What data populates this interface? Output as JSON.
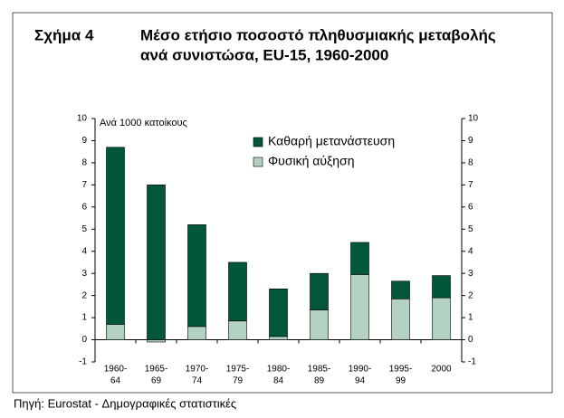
{
  "chart_data": {
    "type": "stacked_bar",
    "figure_label": "Σχήμα 4",
    "title": [
      "Μέσο ετήσιο ποσοστό πληθυσμιακής μεταβολής",
      "ανά συνιστώσα, EU-15, 1960-2000"
    ],
    "axis_note": "Ανά 1000 κατοίκους",
    "source": "Πηγή: Eurostat - Δημογραφικές στατιστικές",
    "categories": [
      [
        "1960-",
        "64"
      ],
      [
        "1965-",
        "69"
      ],
      [
        "1970-",
        "74"
      ],
      [
        "1975-",
        "79"
      ],
      [
        "1980-",
        "84"
      ],
      [
        "1985-",
        "89"
      ],
      [
        "1990-",
        "94"
      ],
      [
        "1995-",
        "99"
      ],
      [
        "2000"
      ]
    ],
    "series": [
      {
        "name": "Φυσική αύξηση",
        "color": "#b3d1c1",
        "values": [
          0.7,
          -0.1,
          0.6,
          0.85,
          0.15,
          1.35,
          2.95,
          1.85,
          1.9
        ]
      },
      {
        "name": "Καθαρή μετανάστευση",
        "color": "#00573a",
        "values": [
          8.0,
          7.0,
          4.6,
          2.65,
          2.15,
          1.65,
          1.45,
          0.8,
          1.0
        ]
      }
    ],
    "ylim": [
      -1,
      10
    ],
    "yticks": [
      -1,
      0,
      1,
      2,
      3,
      4,
      5,
      6,
      7,
      8,
      9,
      10
    ],
    "y2lim": [
      -1,
      10
    ],
    "y2ticks": [
      -1,
      0,
      1,
      2,
      3,
      4,
      5,
      6,
      7,
      8,
      9,
      10
    ],
    "legend": "top-center"
  }
}
